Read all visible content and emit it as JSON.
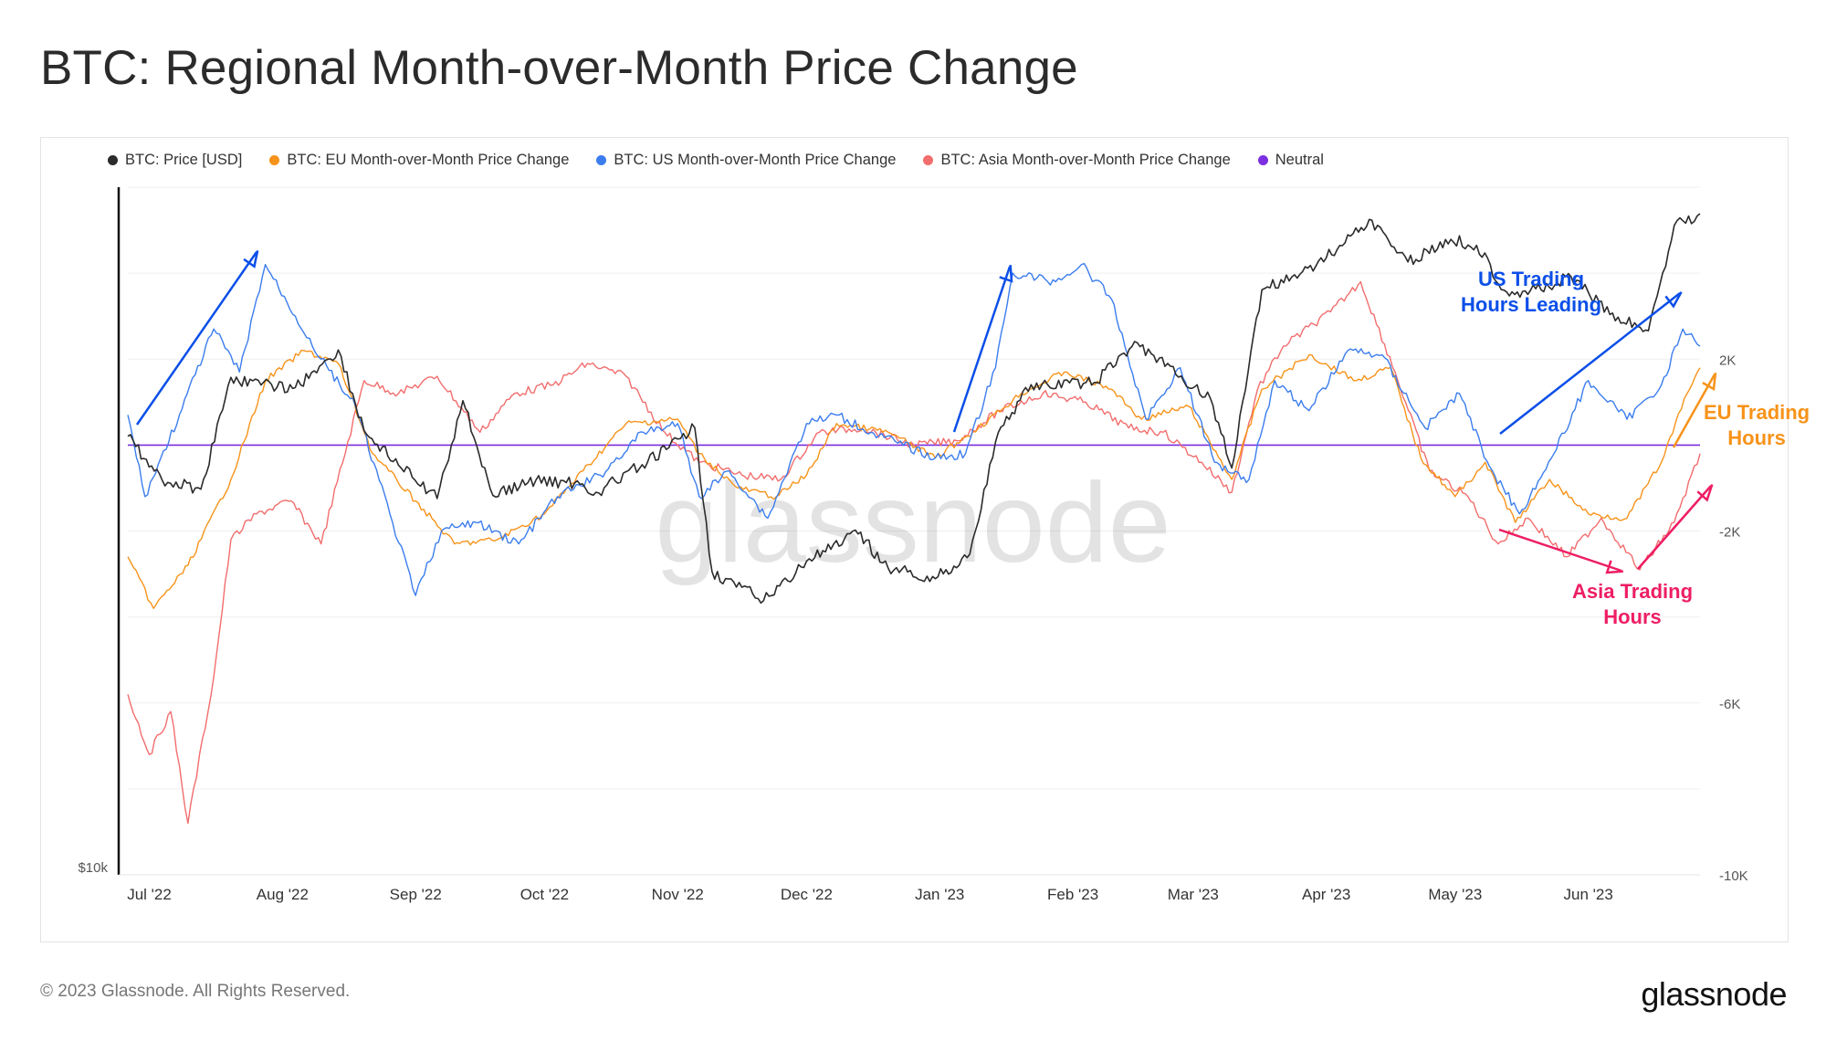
{
  "page": {
    "title": "BTC: Regional Month-over-Month Price Change",
    "copyright": "© 2023 Glassnode. All Rights Reserved.",
    "logo": "glassnode",
    "watermark": "glassnode"
  },
  "chart_data": {
    "type": "line",
    "legend": [
      {
        "name": "BTC: Price [USD]",
        "color": "#2b2b2b"
      },
      {
        "name": "BTC: EU Month-over-Month Price Change",
        "color": "#f7931a"
      },
      {
        "name": "BTC: US Month-over-Month Price Change",
        "color": "#3b7dee"
      },
      {
        "name": "BTC: Asia Month-over-Month Price Change",
        "color": "#f26d6d"
      },
      {
        "name": "Neutral",
        "color": "#7b2fe0"
      }
    ],
    "legend_position": "top-left",
    "x_ticks": [
      "Jul '22",
      "Aug '22",
      "Sep '22",
      "Oct '22",
      "Nov '22",
      "Dec '22",
      "Jan '23",
      "Feb '23",
      "Mar '23",
      "Apr '23",
      "May '23",
      "Jun '23"
    ],
    "x_range": [
      "2022-06-26",
      "2023-06-27"
    ],
    "left_axis": {
      "label": "$10k",
      "scale": "log",
      "range": [
        10000,
        32000
      ]
    },
    "right_axis": {
      "ticks": [
        "2K",
        "-2K",
        "-6K",
        "-10K"
      ],
      "tick_values": [
        2000,
        -2000,
        -6000,
        -10000
      ],
      "range": [
        -10000,
        6000
      ]
    },
    "grid": true,
    "series": [
      {
        "name": "BTC: Price [USD]",
        "color": "#2b2b2b",
        "axis": "left",
        "points": [
          [
            "2022-06-26",
            21000
          ],
          [
            "2022-07-04",
            19500
          ],
          [
            "2022-07-13",
            19200
          ],
          [
            "2022-07-20",
            23200
          ],
          [
            "2022-07-27",
            22900
          ],
          [
            "2022-08-04",
            22800
          ],
          [
            "2022-08-14",
            24300
          ],
          [
            "2022-08-20",
            21200
          ],
          [
            "2022-08-28",
            20000
          ],
          [
            "2022-09-06",
            18900
          ],
          [
            "2022-09-12",
            22300
          ],
          [
            "2022-09-19",
            19000
          ],
          [
            "2022-09-29",
            19500
          ],
          [
            "2022-10-08",
            19400
          ],
          [
            "2022-10-13",
            19100
          ],
          [
            "2022-10-25",
            20100
          ],
          [
            "2022-10-30",
            20600
          ],
          [
            "2022-11-05",
            21300
          ],
          [
            "2022-11-09",
            16700
          ],
          [
            "2022-11-21",
            15900
          ],
          [
            "2022-12-01",
            17000
          ],
          [
            "2022-12-13",
            17800
          ],
          [
            "2022-12-20",
            16800
          ],
          [
            "2022-12-31",
            16500
          ],
          [
            "2023-01-08",
            17200
          ],
          [
            "2023-01-14",
            20800
          ],
          [
            "2023-01-21",
            22800
          ],
          [
            "2023-02-06",
            23000
          ],
          [
            "2023-02-16",
            24600
          ],
          [
            "2023-02-25",
            23300
          ],
          [
            "2023-03-05",
            22400
          ],
          [
            "2023-03-10",
            19900
          ],
          [
            "2023-03-17",
            26900
          ],
          [
            "2023-03-24",
            27500
          ],
          [
            "2023-04-01",
            28400
          ],
          [
            "2023-04-11",
            30300
          ],
          [
            "2023-04-20",
            28200
          ],
          [
            "2023-04-30",
            29300
          ],
          [
            "2023-05-06",
            29000
          ],
          [
            "2023-05-13",
            26800
          ],
          [
            "2023-05-21",
            26900
          ],
          [
            "2023-05-28",
            27500
          ],
          [
            "2023-06-06",
            25800
          ],
          [
            "2023-06-15",
            25100
          ],
          [
            "2023-06-21",
            30000
          ],
          [
            "2023-06-27",
            30600
          ]
        ]
      },
      {
        "name": "BTC: EU Month-over-Month Price Change",
        "color": "#f7931a",
        "axis": "right",
        "points": [
          [
            "2022-06-26",
            -2600
          ],
          [
            "2022-07-02",
            -3800
          ],
          [
            "2022-07-10",
            -2800
          ],
          [
            "2022-07-20",
            -800
          ],
          [
            "2022-07-28",
            1500
          ],
          [
            "2022-08-06",
            2200
          ],
          [
            "2022-08-14",
            1900
          ],
          [
            "2022-08-22",
            -200
          ],
          [
            "2022-09-01",
            -1300
          ],
          [
            "2022-09-10",
            -2300
          ],
          [
            "2022-09-20",
            -2200
          ],
          [
            "2022-10-01",
            -1600
          ],
          [
            "2022-10-10",
            -600
          ],
          [
            "2022-10-20",
            500
          ],
          [
            "2022-11-01",
            600
          ],
          [
            "2022-11-06",
            -200
          ],
          [
            "2022-11-15",
            -1000
          ],
          [
            "2022-11-24",
            -1200
          ],
          [
            "2022-12-01",
            -700
          ],
          [
            "2022-12-08",
            500
          ],
          [
            "2022-12-20",
            300
          ],
          [
            "2022-12-31",
            -300
          ],
          [
            "2023-01-10",
            400
          ],
          [
            "2023-01-20",
            1200
          ],
          [
            "2023-01-30",
            1700
          ],
          [
            "2023-02-10",
            1300
          ],
          [
            "2023-02-17",
            600
          ],
          [
            "2023-02-28",
            900
          ],
          [
            "2023-03-10",
            -800
          ],
          [
            "2023-03-17",
            1300
          ],
          [
            "2023-03-28",
            2100
          ],
          [
            "2023-04-08",
            1500
          ],
          [
            "2023-04-16",
            1800
          ],
          [
            "2023-04-23",
            -300
          ],
          [
            "2023-05-01",
            -1200
          ],
          [
            "2023-05-08",
            -400
          ],
          [
            "2023-05-15",
            -1800
          ],
          [
            "2023-05-23",
            -800
          ],
          [
            "2023-06-01",
            -1600
          ],
          [
            "2023-06-10",
            -1700
          ],
          [
            "2023-06-18",
            -400
          ],
          [
            "2023-06-24",
            1200
          ],
          [
            "2023-06-27",
            1800
          ]
        ]
      },
      {
        "name": "BTC: US Month-over-Month Price Change",
        "color": "#3b7dee",
        "axis": "right",
        "points": [
          [
            "2022-06-26",
            700
          ],
          [
            "2022-06-30",
            -1200
          ],
          [
            "2022-07-08",
            700
          ],
          [
            "2022-07-16",
            2700
          ],
          [
            "2022-07-22",
            1700
          ],
          [
            "2022-07-28",
            4200
          ],
          [
            "2022-08-04",
            3000
          ],
          [
            "2022-08-10",
            2000
          ],
          [
            "2022-08-18",
            900
          ],
          [
            "2022-08-26",
            -1600
          ],
          [
            "2022-09-01",
            -3500
          ],
          [
            "2022-09-07",
            -2000
          ],
          [
            "2022-09-15",
            -1800
          ],
          [
            "2022-09-25",
            -2300
          ],
          [
            "2022-10-04",
            -1200
          ],
          [
            "2022-10-14",
            -700
          ],
          [
            "2022-10-24",
            300
          ],
          [
            "2022-11-01",
            500
          ],
          [
            "2022-11-06",
            -1200
          ],
          [
            "2022-11-13",
            -600
          ],
          [
            "2022-11-22",
            -1700
          ],
          [
            "2022-12-01",
            500
          ],
          [
            "2022-12-08",
            700
          ],
          [
            "2022-12-16",
            300
          ],
          [
            "2022-12-31",
            -300
          ],
          [
            "2023-01-07",
            -200
          ],
          [
            "2023-01-14",
            1800
          ],
          [
            "2023-01-18",
            4000
          ],
          [
            "2023-01-28",
            3800
          ],
          [
            "2023-02-03",
            4200
          ],
          [
            "2023-02-10",
            3400
          ],
          [
            "2023-02-18",
            600
          ],
          [
            "2023-02-26",
            1800
          ],
          [
            "2023-03-06",
            -400
          ],
          [
            "2023-03-14",
            -800
          ],
          [
            "2023-03-20",
            1500
          ],
          [
            "2023-03-28",
            800
          ],
          [
            "2023-04-06",
            2200
          ],
          [
            "2023-04-14",
            2100
          ],
          [
            "2023-04-24",
            400
          ],
          [
            "2023-05-02",
            1200
          ],
          [
            "2023-05-09",
            -500
          ],
          [
            "2023-05-16",
            -1600
          ],
          [
            "2023-05-24",
            -200
          ],
          [
            "2023-06-01",
            1500
          ],
          [
            "2023-06-10",
            600
          ],
          [
            "2023-06-18",
            1400
          ],
          [
            "2023-06-23",
            2700
          ],
          [
            "2023-06-27",
            2300
          ]
        ]
      },
      {
        "name": "BTC: Asia Month-over-Month Price Change",
        "color": "#f26d6d",
        "axis": "right",
        "points": [
          [
            "2022-06-26",
            -5800
          ],
          [
            "2022-07-01",
            -7200
          ],
          [
            "2022-07-06",
            -6200
          ],
          [
            "2022-07-10",
            -8800
          ],
          [
            "2022-07-16",
            -5400
          ],
          [
            "2022-07-20",
            -2200
          ],
          [
            "2022-07-26",
            -1600
          ],
          [
            "2022-08-03",
            -1300
          ],
          [
            "2022-08-10",
            -2300
          ],
          [
            "2022-08-20",
            1500
          ],
          [
            "2022-08-28",
            1200
          ],
          [
            "2022-09-06",
            1600
          ],
          [
            "2022-09-16",
            300
          ],
          [
            "2022-09-24",
            1200
          ],
          [
            "2022-10-03",
            1400
          ],
          [
            "2022-10-11",
            1900
          ],
          [
            "2022-10-20",
            1600
          ],
          [
            "2022-10-29",
            300
          ],
          [
            "2022-11-06",
            -400
          ],
          [
            "2022-11-16",
            -700
          ],
          [
            "2022-11-25",
            -800
          ],
          [
            "2022-12-04",
            300
          ],
          [
            "2022-12-14",
            400
          ],
          [
            "2022-12-26",
            0
          ],
          [
            "2023-01-05",
            100
          ],
          [
            "2023-01-15",
            800
          ],
          [
            "2023-01-25",
            1200
          ],
          [
            "2023-02-04",
            1000
          ],
          [
            "2023-02-14",
            400
          ],
          [
            "2023-02-22",
            300
          ],
          [
            "2023-03-03",
            -400
          ],
          [
            "2023-03-10",
            -1100
          ],
          [
            "2023-03-16",
            1300
          ],
          [
            "2023-03-22",
            2300
          ],
          [
            "2023-04-02",
            3100
          ],
          [
            "2023-04-09",
            3800
          ],
          [
            "2023-04-17",
            1700
          ],
          [
            "2023-04-25",
            -600
          ],
          [
            "2023-05-04",
            -1200
          ],
          [
            "2023-05-11",
            -2300
          ],
          [
            "2023-05-18",
            -1700
          ],
          [
            "2023-05-27",
            -2600
          ],
          [
            "2023-06-04",
            -1700
          ],
          [
            "2023-06-13",
            -2900
          ],
          [
            "2023-06-21",
            -1800
          ],
          [
            "2023-06-27",
            -200
          ]
        ]
      },
      {
        "name": "Neutral",
        "color": "#7b2fe0",
        "axis": "right",
        "points": [
          [
            "2022-06-26",
            0
          ],
          [
            "2023-06-27",
            0
          ]
        ]
      }
    ],
    "annotations": [
      {
        "text_lines": [
          "US Trading",
          "Hours Leading"
        ],
        "color": "#0b4fe8"
      },
      {
        "text_lines": [
          "EU Trading",
          "Hours"
        ],
        "color": "#f7931a"
      },
      {
        "text_lines": [
          "Asia Trading",
          "Hours"
        ],
        "color": "#ee1e63"
      }
    ]
  }
}
